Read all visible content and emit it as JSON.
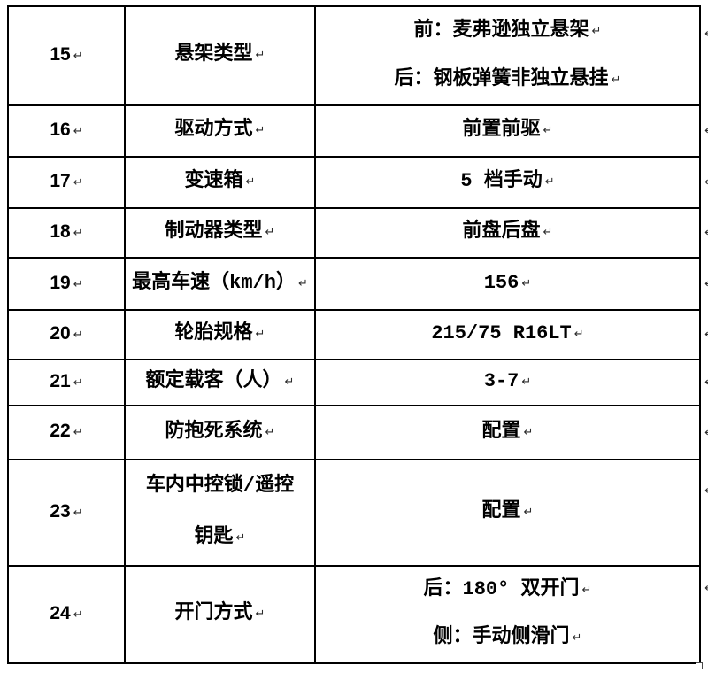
{
  "marks": {
    "pilcrow": "↵"
  },
  "colors": {
    "border": "#000000",
    "text": "#000000",
    "formatting_mark": "#2b2b2b",
    "background": "#ffffff"
  },
  "table": {
    "columns": [
      "row-number",
      "spec-name",
      "spec-value"
    ],
    "rows": [
      {
        "no": "15",
        "label_lines": [
          "悬架类型"
        ],
        "value_lines": [
          "前：麦弗逊独立悬架",
          "后：钢板弹簧非独立悬挂"
        ]
      },
      {
        "no": "16",
        "label_lines": [
          "驱动方式"
        ],
        "value_lines": [
          "前置前驱"
        ]
      },
      {
        "no": "17",
        "label_lines": [
          "变速箱"
        ],
        "value_lines": [
          "5 档手动"
        ]
      },
      {
        "no": "18",
        "label_lines": [
          "制动器类型"
        ],
        "value_lines": [
          "前盘后盘"
        ]
      },
      {
        "no": "19",
        "label_lines": [
          "最高车速（km/h）"
        ],
        "value_lines": [
          "156"
        ]
      },
      {
        "no": "20",
        "label_lines": [
          "轮胎规格"
        ],
        "value_lines": [
          "215/75 R16LT"
        ]
      },
      {
        "no": "21",
        "label_lines": [
          "额定载客（人）"
        ],
        "value_lines": [
          "3-7"
        ]
      },
      {
        "no": "22",
        "label_lines": [
          "防抱死系统"
        ],
        "value_lines": [
          "配置"
        ]
      },
      {
        "no": "23",
        "label_lines": [
          "车内中控锁/遥控",
          "钥匙"
        ],
        "value_lines": [
          "配置"
        ]
      },
      {
        "no": "24",
        "label_lines": [
          "开门方式"
        ],
        "value_lines": [
          "后：180° 双开门",
          "侧：手动侧滑门"
        ]
      }
    ]
  }
}
